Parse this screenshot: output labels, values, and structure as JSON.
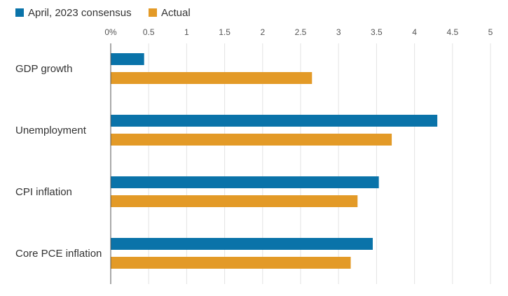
{
  "chart_data": {
    "type": "bar",
    "orientation": "horizontal",
    "title": "",
    "xlabel": "",
    "ylabel": "",
    "xlim": [
      0,
      5
    ],
    "ticks": [
      0,
      0.5,
      1,
      1.5,
      2,
      2.5,
      3,
      3.5,
      4,
      4.5,
      5
    ],
    "tick_labels": [
      "0%",
      "0.5",
      "1",
      "1.5",
      "2",
      "2.5",
      "3",
      "3.5",
      "4",
      "4.5",
      "5"
    ],
    "grid": true,
    "legend_position": "top-left",
    "categories": [
      "GDP growth",
      "Unemployment",
      "CPI inflation",
      "Core PCE inflation"
    ],
    "series": [
      {
        "name": "April, 2023 consensus",
        "color": "#0a73a9",
        "values": [
          0.44,
          4.3,
          3.53,
          3.45
        ]
      },
      {
        "name": "Actual",
        "color": "#e39a27",
        "values": [
          2.65,
          3.7,
          3.25,
          3.16
        ]
      }
    ]
  }
}
